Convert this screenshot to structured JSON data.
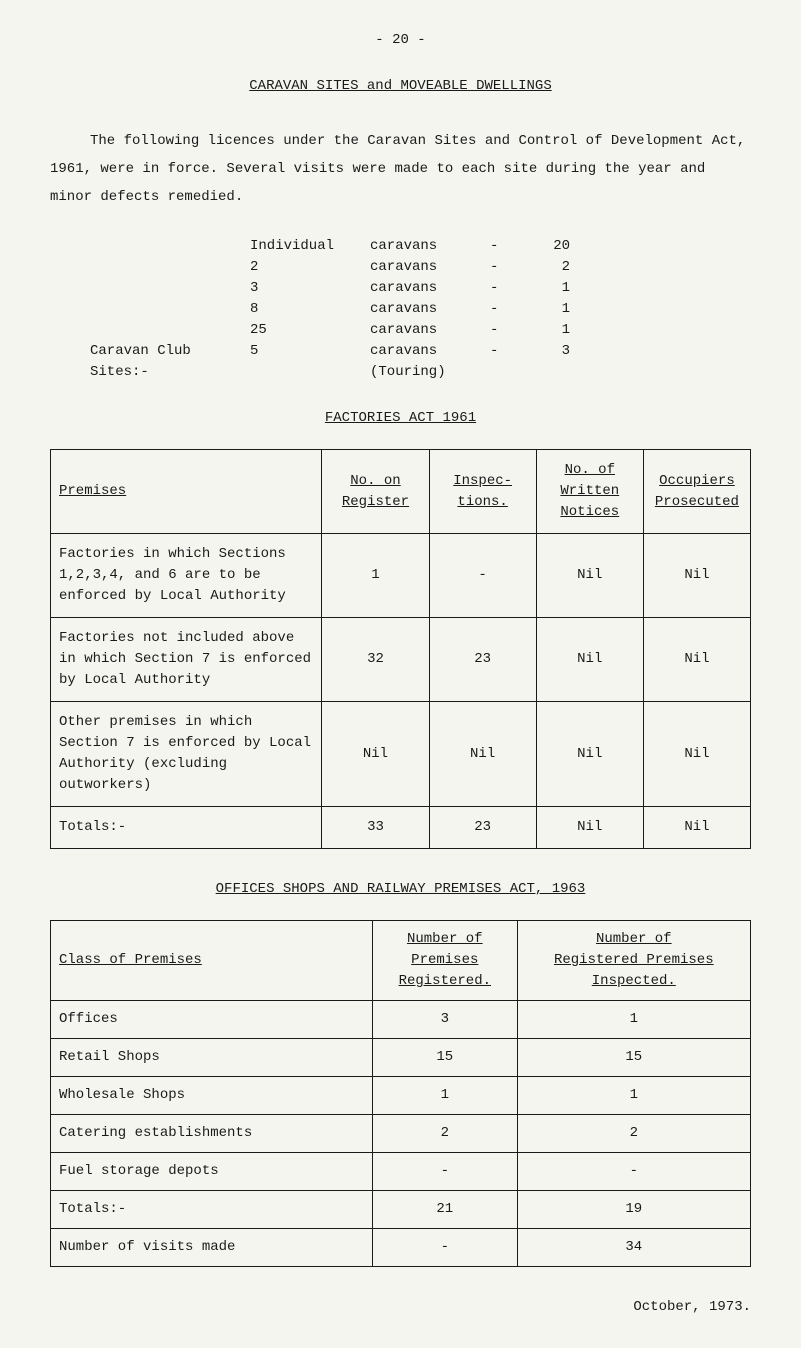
{
  "page_number": "- 20 -",
  "title_main": "CARAVAN SITES and MOVEABLE DWELLINGS",
  "intro": "The following licences under the Caravan Sites and Control of Development Act, 1961, were in force.  Several visits were made to each site during the year and minor defects remedied.",
  "caravan_rows": [
    {
      "site_label": "",
      "type": "Individual",
      "word": "caravans",
      "dash": "-",
      "value": "20"
    },
    {
      "site_label": "",
      "type": "2",
      "word": "caravans",
      "dash": "-",
      "value": "2"
    },
    {
      "site_label": "",
      "type": "3",
      "word": "caravans",
      "dash": "-",
      "value": "1"
    },
    {
      "site_label": "",
      "type": "8",
      "word": "caravans",
      "dash": "-",
      "value": "1"
    },
    {
      "site_label": "",
      "type": "25",
      "word": "caravans",
      "dash": "-",
      "value": "1"
    },
    {
      "site_label": "Caravan Club Sites:-",
      "type": "5",
      "word": "caravans (Touring)",
      "dash": "-",
      "value": "3"
    }
  ],
  "factories_heading": "FACTORIES ACT 1961",
  "factories_headers": {
    "premises": "Premises",
    "no_on": "No. on Register",
    "inspec": "Inspec-tions.",
    "no_of": "No. of Written Notices",
    "occupiers": "Occupiers Prosecuted"
  },
  "factories_rows": [
    {
      "premises": "Factories in which Sections 1,2,3,4, and 6 are to be enforced by Local Authority",
      "no_on": "1",
      "inspec": "-",
      "no_of": "Nil",
      "occupiers": "Nil"
    },
    {
      "premises": "Factories not included above in which Section 7 is enforced by Local Authority",
      "no_on": "32",
      "inspec": "23",
      "no_of": "Nil",
      "occupiers": "Nil"
    },
    {
      "premises": "Other premises in which Section 7 is enforced by Local Authority (excluding outworkers)",
      "no_on": "Nil",
      "inspec": "Nil",
      "no_of": "Nil",
      "occupiers": "Nil"
    }
  ],
  "factories_totals": {
    "label": "Totals:-",
    "no_on": "33",
    "inspec": "23",
    "no_of": "Nil",
    "occupiers": "Nil"
  },
  "offices_heading": "OFFICES SHOPS AND RAILWAY PREMISES ACT, 1963",
  "offices_headers": {
    "class": "Class of Premises",
    "num_reg_line1": "Number of",
    "num_reg_line2": "Premises",
    "num_reg_line3": "Registered.",
    "num_insp_line1": "Number of",
    "num_insp_line2": "Registered Premises",
    "num_insp_line3": "Inspected."
  },
  "offices_rows": [
    {
      "class": "Offices",
      "registered": "3",
      "inspected": "1"
    },
    {
      "class": "Retail Shops",
      "registered": "15",
      "inspected": "15"
    },
    {
      "class": "Wholesale Shops",
      "registered": "1",
      "inspected": "1"
    },
    {
      "class": "Catering establishments",
      "registered": "2",
      "inspected": "2"
    },
    {
      "class": "Fuel storage depots",
      "registered": "-",
      "inspected": "-"
    }
  ],
  "offices_totals": {
    "label": "Totals:-",
    "registered": "21",
    "inspected": "19"
  },
  "visits_row": {
    "label": "Number of visits made",
    "registered": "-",
    "inspected": "34"
  },
  "footer_date": "October, 1973."
}
